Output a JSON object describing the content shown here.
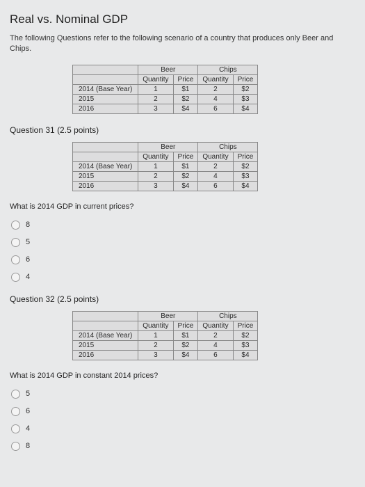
{
  "page_title": "Real vs. Nominal GDP",
  "intro": "The following Questions refer to the following scenario of a country that produces only Beer and Chips.",
  "table": {
    "cat1": "Beer",
    "cat2": "Chips",
    "sub_q": "Quantity",
    "sub_p": "Price",
    "rows": [
      {
        "label": "2014 (Base Year)",
        "bq": "1",
        "bp": "$1",
        "cq": "2",
        "cp": "$2"
      },
      {
        "label": "2015",
        "bq": "2",
        "bp": "$2",
        "cq": "4",
        "cp": "$3"
      },
      {
        "label": "2016",
        "bq": "3",
        "bp": "$4",
        "cq": "6",
        "cp": "$4"
      }
    ]
  },
  "q31": {
    "header": "Question 31",
    "points": "(2.5 points)",
    "text": "What is 2014 GDP in current prices?",
    "options": [
      "8",
      "5",
      "6",
      "4"
    ]
  },
  "q32": {
    "header": "Question 32",
    "points": "(2.5 points)",
    "text": "What is 2014 GDP in constant 2014 prices?",
    "options": [
      "5",
      "6",
      "4",
      "8"
    ]
  }
}
